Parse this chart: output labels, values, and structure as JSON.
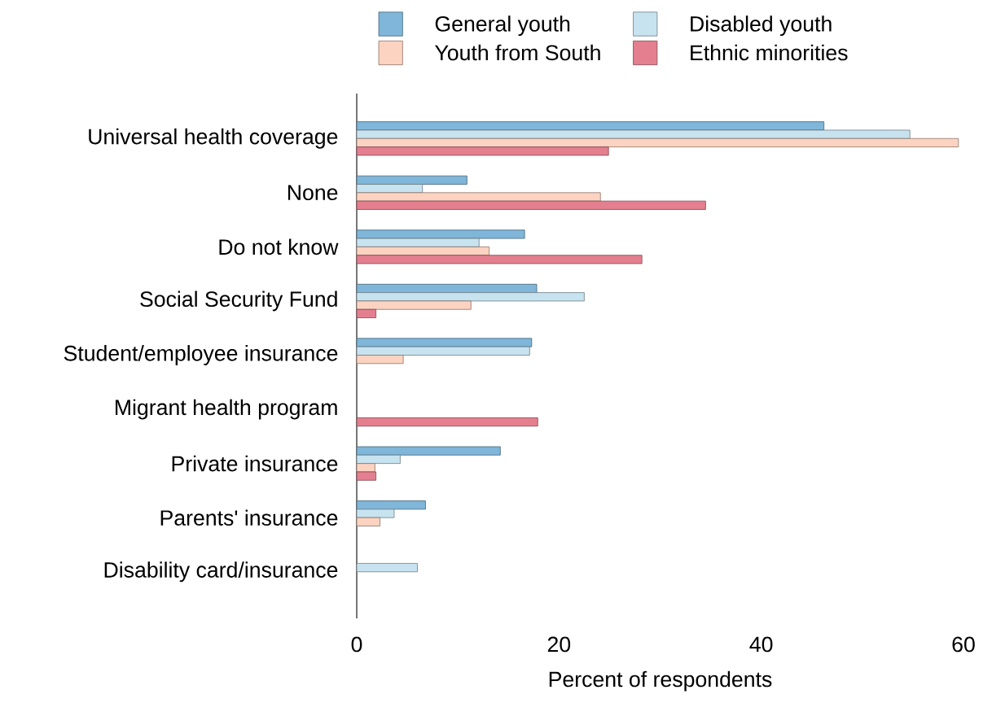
{
  "chart_data": {
    "type": "bar",
    "orientation": "horizontal",
    "xlabel": "Percent of respondents",
    "categories": [
      "Universal health coverage",
      "None",
      "Do not know",
      "Social Security Fund",
      "Student/employee insurance",
      "Migrant health program",
      "Private insurance",
      "Parents' insurance",
      "Disability card/insurance"
    ],
    "series": [
      {
        "name": "General youth",
        "color": "#7fb6d9",
        "values": [
          46.2,
          10.9,
          16.6,
          17.8,
          17.3,
          null,
          14.2,
          6.8,
          null
        ]
      },
      {
        "name": "Disabled youth",
        "color": "#c8e3f0",
        "values": [
          54.7,
          6.5,
          12.1,
          22.5,
          17.1,
          null,
          4.3,
          3.7,
          6.0
        ]
      },
      {
        "name": "Youth from South",
        "color": "#fcd3c1",
        "values": [
          59.5,
          24.1,
          13.1,
          11.3,
          4.6,
          null,
          1.8,
          2.3,
          null
        ]
      },
      {
        "name": "Ethnic minorities",
        "color": "#e47f8f",
        "values": [
          24.9,
          34.5,
          28.2,
          1.9,
          null,
          17.9,
          1.9,
          null,
          null
        ]
      }
    ],
    "xlim": [
      0,
      60
    ],
    "xticks": [
      0,
      20,
      40,
      60
    ],
    "grid": false,
    "legend": "top"
  }
}
